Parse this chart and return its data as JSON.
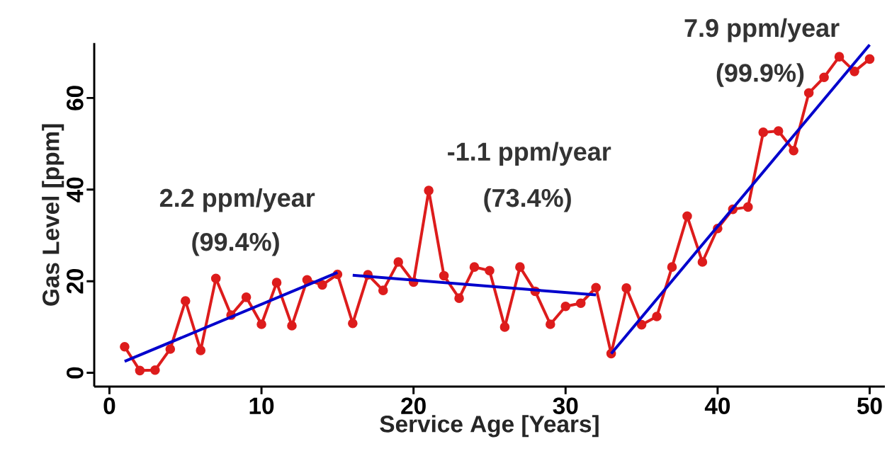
{
  "chart_data": {
    "type": "line",
    "xlabel": "Service Age [Years]",
    "ylabel": "Gas Level [ppm]",
    "x": [
      1,
      2,
      3,
      4,
      5,
      6,
      7,
      8,
      9,
      10,
      11,
      12,
      13,
      14,
      15,
      16,
      17,
      18,
      19,
      20,
      21,
      22,
      23,
      24,
      25,
      26,
      27,
      28,
      29,
      30,
      31,
      32,
      33,
      34,
      35,
      36,
      37,
      38,
      39,
      40,
      41,
      42,
      43,
      44,
      45,
      46,
      47,
      48,
      49,
      50
    ],
    "xlim": [
      -1,
      51
    ],
    "xticks": [
      0,
      10,
      20,
      30,
      40,
      50
    ],
    "ylim": [
      -3,
      72
    ],
    "yticks": [
      0,
      20,
      40,
      60
    ],
    "series": [
      {
        "color": "#dd1c1c",
        "marker": "circle",
        "values": [
          5.7,
          0.5,
          0.6,
          5.2,
          15.7,
          4.9,
          20.6,
          12.6,
          16.5,
          10.6,
          19.7,
          10.3,
          20.3,
          19.2,
          21.5,
          10.8,
          21.4,
          18,
          24.2,
          19.8,
          39.8,
          21.2,
          16.3,
          23.1,
          22.3,
          10,
          23.1,
          17.8,
          10.6,
          14.5,
          15.2,
          18.6,
          4.2,
          18.5,
          10.5,
          12.3,
          23.1,
          34.2,
          24.2,
          31.5,
          35.7,
          36.2,
          52.5,
          52.8,
          48.5,
          61.1,
          64.5,
          69,
          65.8,
          68.5
        ]
      },
      {
        "color": "#0000cc",
        "marker": "none",
        "x": [
          1,
          15
        ],
        "values": [
          2.5,
          21.9
        ]
      },
      {
        "color": "#0000cc",
        "marker": "none",
        "x": [
          16,
          32
        ],
        "values": [
          21.3,
          17
        ]
      },
      {
        "color": "#0000cc",
        "marker": "none",
        "x": [
          33,
          50
        ],
        "values": [
          4.2,
          71.6
        ]
      }
    ],
    "annotations": [
      "2.2 ppm/year",
      "(99.4%)",
      "-1.1 ppm/year",
      "(73.4%)",
      "7.9 ppm/year",
      "(99.9%)"
    ]
  }
}
